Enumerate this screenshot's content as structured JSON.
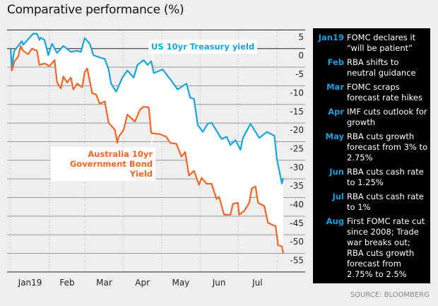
{
  "title": "Comparative performance (%)",
  "source": "SOURCE: BLOOMBERG",
  "colors": {
    "us": "#16a4e4",
    "au": "#f26522",
    "event_month": "#1c9fe0"
  },
  "events": [
    {
      "month": "Jan19",
      "text": "FOMC declares it “will be patient”"
    },
    {
      "month": "Feb",
      "text": "RBA shifts to neutral guidance"
    },
    {
      "month": "Mar",
      "text": "FOMC scraps forecast rate hikes"
    },
    {
      "month": "Apr",
      "text": "IMF cuts outlook for growth"
    },
    {
      "month": "May",
      "text": "RBA cuts growth forecast from 3% to 2.75%"
    },
    {
      "month": "Jun",
      "text": "RBA cuts cash rate to 1.25%"
    },
    {
      "month": "Jul",
      "text": "RBA cuts cash rate to 1%"
    },
    {
      "month": "Aug",
      "text": "First FOMC rate cut since 2008; Trade war breaks out; RBA cuts growth forecast from 2.75% to 2.5%"
    }
  ],
  "chart_data": {
    "type": "line",
    "title": "Comparative performance (%)",
    "ylim": [
      -60,
      5
    ],
    "yticks": [
      5,
      0,
      -5,
      -10,
      -15,
      -20,
      -25,
      -30,
      -35,
      -40,
      -45,
      -50,
      -55
    ],
    "xlim": [
      "2019-01-01",
      "2019-08-06"
    ],
    "xticks": [
      "Jan19",
      "Feb",
      "Mar",
      "Apr",
      "May",
      "Jun",
      "Jul"
    ],
    "grid": true,
    "series": [
      {
        "name": "US 10yr Treasury yield",
        "points": [
          [
            "2019-01-01",
            0
          ],
          [
            "2019-01-02",
            -4.7
          ],
          [
            "2019-01-04",
            -0.6
          ],
          [
            "2019-01-10",
            2
          ],
          [
            "2019-01-11",
            1
          ],
          [
            "2019-01-19",
            4
          ],
          [
            "2019-01-22",
            4
          ],
          [
            "2019-01-24",
            2.3
          ],
          [
            "2019-01-25",
            2.9
          ],
          [
            "2019-01-28",
            2.3
          ],
          [
            "2019-01-31",
            -1.8
          ],
          [
            "2019-02-03",
            1.3
          ],
          [
            "2019-02-07",
            -1.2
          ],
          [
            "2019-02-12",
            0.7
          ],
          [
            "2019-02-18",
            -0.9
          ],
          [
            "2019-02-23",
            -0.6
          ],
          [
            "2019-02-26",
            -0.9
          ],
          [
            "2019-03-01",
            2.8
          ],
          [
            "2019-03-05",
            1.3
          ],
          [
            "2019-03-08",
            -1.8
          ],
          [
            "2019-03-14",
            -2.5
          ],
          [
            "2019-03-17",
            -2.8
          ],
          [
            "2019-03-20",
            -5.6
          ],
          [
            "2019-03-22",
            -9.4
          ],
          [
            "2019-03-26",
            -11.6
          ],
          [
            "2019-03-31",
            -7.8
          ],
          [
            "2019-04-04",
            -5.9
          ],
          [
            "2019-04-09",
            -7.8
          ],
          [
            "2019-04-12",
            -4.4
          ],
          [
            "2019-04-17",
            -3.1
          ],
          [
            "2019-04-20",
            -4.4
          ],
          [
            "2019-04-23",
            -3.4
          ],
          [
            "2019-04-25",
            -6.6
          ],
          [
            "2019-05-02",
            -5.6
          ],
          [
            "2019-05-08",
            -8.2
          ],
          [
            "2019-05-14",
            -11
          ],
          [
            "2019-05-21",
            -9.4
          ],
          [
            "2019-05-24",
            -13.2
          ],
          [
            "2019-05-27",
            -13.5
          ],
          [
            "2019-05-30",
            -20.5
          ],
          [
            "2019-06-03",
            -22.4
          ],
          [
            "2019-06-07",
            -20.2
          ],
          [
            "2019-06-10",
            -19.9
          ],
          [
            "2019-06-18",
            -24.3
          ],
          [
            "2019-06-22",
            -23.7
          ],
          [
            "2019-06-25",
            -25.9
          ],
          [
            "2019-06-29",
            -24.6
          ],
          [
            "2019-07-03",
            -27.2
          ],
          [
            "2019-07-05",
            -24
          ],
          [
            "2019-07-11",
            -20.2
          ],
          [
            "2019-07-18",
            -24
          ],
          [
            "2019-07-24",
            -22.4
          ],
          [
            "2019-07-30",
            -23.4
          ],
          [
            "2019-08-01",
            -29.7
          ],
          [
            "2019-08-05",
            -36.3
          ],
          [
            "2019-08-06",
            -34.7
          ]
        ]
      },
      {
        "name": "Australia 10yr Government Bond Yield",
        "points": [
          [
            "2019-01-01",
            0
          ],
          [
            "2019-01-02",
            -5.9
          ],
          [
            "2019-01-04",
            -3.4
          ],
          [
            "2019-01-07",
            -2.2
          ],
          [
            "2019-01-09",
            0.7
          ],
          [
            "2019-01-11",
            -0.6
          ],
          [
            "2019-01-15",
            -1.5
          ],
          [
            "2019-01-18",
            0
          ],
          [
            "2019-01-22",
            -0.6
          ],
          [
            "2019-01-24",
            -4.4
          ],
          [
            "2019-01-28",
            -4
          ],
          [
            "2019-02-01",
            -4.7
          ],
          [
            "2019-02-05",
            -3.1
          ],
          [
            "2019-02-07",
            -9.1
          ],
          [
            "2019-02-10",
            -10.7
          ],
          [
            "2019-02-12",
            -7.5
          ],
          [
            "2019-02-15",
            -9.1
          ],
          [
            "2019-02-18",
            -7.8
          ],
          [
            "2019-02-20",
            -11
          ],
          [
            "2019-02-23",
            -9.4
          ],
          [
            "2019-02-27",
            -10.4
          ],
          [
            "2019-03-01",
            -6.3
          ],
          [
            "2019-03-03",
            -5.3
          ],
          [
            "2019-03-07",
            -12
          ],
          [
            "2019-03-10",
            -12.3
          ],
          [
            "2019-03-13",
            -14.8
          ],
          [
            "2019-03-17",
            -14.2
          ],
          [
            "2019-03-20",
            -19.9
          ],
          [
            "2019-03-25",
            -21.8
          ],
          [
            "2019-03-27",
            -25.3
          ],
          [
            "2019-03-28",
            -23.7
          ],
          [
            "2019-04-01",
            -21.8
          ],
          [
            "2019-04-04",
            -17.7
          ],
          [
            "2019-04-07",
            -18.7
          ],
          [
            "2019-04-10",
            -19.6
          ],
          [
            "2019-04-14",
            -16.4
          ],
          [
            "2019-04-17",
            -15.6
          ],
          [
            "2019-04-21",
            -15.8
          ],
          [
            "2019-04-23",
            -22.7
          ],
          [
            "2019-04-30",
            -23
          ],
          [
            "2019-05-05",
            -23.7
          ],
          [
            "2019-05-08",
            -25.3
          ],
          [
            "2019-05-13",
            -25.6
          ],
          [
            "2019-05-17",
            -29
          ],
          [
            "2019-05-20",
            -27.8
          ],
          [
            "2019-05-23",
            -34.1
          ],
          [
            "2019-05-27",
            -32.8
          ],
          [
            "2019-05-31",
            -36.6
          ],
          [
            "2019-06-02",
            -34.7
          ],
          [
            "2019-06-06",
            -36.3
          ],
          [
            "2019-06-10",
            -36.3
          ],
          [
            "2019-06-14",
            -40.4
          ],
          [
            "2019-06-16",
            -39.8
          ],
          [
            "2019-06-20",
            -44.6
          ],
          [
            "2019-06-25",
            -44.6
          ],
          [
            "2019-06-27",
            -41.7
          ],
          [
            "2019-07-01",
            -41.4
          ],
          [
            "2019-07-02",
            -44.6
          ],
          [
            "2019-07-06",
            -43.6
          ],
          [
            "2019-07-10",
            -41.4
          ],
          [
            "2019-07-12",
            -37.6
          ],
          [
            "2019-07-15",
            -37
          ],
          [
            "2019-07-17",
            -41.4
          ],
          [
            "2019-07-22",
            -42.3
          ],
          [
            "2019-07-25",
            -46.8
          ],
          [
            "2019-07-31",
            -47.7
          ],
          [
            "2019-08-02",
            -52.8
          ],
          [
            "2019-08-05",
            -53.1
          ],
          [
            "2019-08-06",
            -55
          ]
        ]
      }
    ]
  }
}
